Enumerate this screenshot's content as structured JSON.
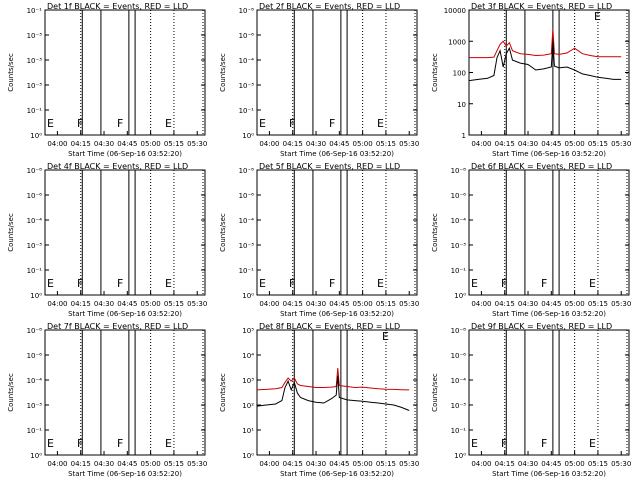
{
  "chart_data": [
    {
      "type": "line",
      "title": "Det 1f BLACK = Events, RED = LLD",
      "xlabel": "",
      "ylabel": "Counts/sec",
      "ytick_labels": [
        "10⁻¹",
        "10⁻³",
        "10⁻³",
        "10⁻³",
        "10⁻¹",
        "10⁰"
      ],
      "xtick_labels": [
        "04:00",
        "04:15",
        "04:30",
        "04:45",
        "05:00",
        "05:15",
        "05:30"
      ],
      "flags": [
        "E",
        "F",
        "F",
        "E"
      ],
      "series": []
    },
    {
      "type": "line",
      "title": "Det 2f BLACK = Events, RED = LLD",
      "xlabel": "",
      "ylabel": "Counts/sec",
      "ytick_labels": [
        "10⁻⁸",
        "10⁻⁶",
        "10⁻⁴",
        "10⁻³",
        "10⁻¹",
        "10⁰"
      ],
      "xtick_labels": [
        "04:00",
        "04:15",
        "04:30",
        "04:45",
        "05:00",
        "05:15",
        "05:30"
      ],
      "flags": [
        "E",
        "F",
        "F",
        "E"
      ],
      "series": []
    },
    {
      "type": "line",
      "title": "Det 3f BLACK = Events, RED = LLD",
      "xlabel": "",
      "ylabel": "Counts/sec",
      "ytick_labels": [
        "10000",
        "1000",
        "100",
        "10",
        "1"
      ],
      "xtick_labels": [
        "04:00",
        "04:15",
        "04:30",
        "04:45",
        "05:00",
        "05:15",
        "05:30"
      ],
      "flags": [
        "E"
      ],
      "series": [
        {
          "color": "#cc0000",
          "x": [
            "03:52",
            "03:58",
            "04:04",
            "04:08",
            "04:10",
            "04:12",
            "04:14",
            "04:16",
            "04:18",
            "04:20",
            "04:25",
            "04:30",
            "04:35",
            "04:40",
            "04:45",
            "04:46",
            "04:47",
            "04:50",
            "04:55",
            "05:00",
            "05:05",
            "05:10",
            "05:15",
            "05:20",
            "05:25",
            "05:30"
          ],
          "y": [
            300,
            300,
            300,
            310,
            500,
            800,
            1000,
            700,
            900,
            500,
            400,
            380,
            350,
            360,
            400,
            2500,
            400,
            380,
            420,
            600,
            400,
            350,
            320,
            320,
            320,
            320
          ]
        },
        {
          "color": "#000000",
          "x": [
            "03:52",
            "03:58",
            "04:04",
            "04:08",
            "04:10",
            "04:12",
            "04:14",
            "04:16",
            "04:18",
            "04:20",
            "04:25",
            "04:30",
            "04:35",
            "04:40",
            "04:45",
            "04:46",
            "04:47",
            "04:50",
            "04:55",
            "05:00",
            "05:05",
            "05:10",
            "05:15",
            "05:20",
            "05:25",
            "05:30"
          ],
          "y": [
            55,
            60,
            65,
            80,
            300,
            500,
            150,
            400,
            600,
            250,
            200,
            180,
            120,
            130,
            150,
            1000,
            160,
            140,
            150,
            120,
            90,
            80,
            70,
            65,
            60,
            60
          ]
        }
      ]
    },
    {
      "type": "line",
      "title": "Det 4f BLACK = Events, RED = LLD",
      "xlabel": "",
      "ylabel": "Counts/sec",
      "ytick_labels": [
        "10⁻⁸",
        "10⁻⁶",
        "10⁻⁴",
        "10⁻³",
        "10⁻¹",
        "10⁰"
      ],
      "xtick_labels": [
        "04:00",
        "04:15",
        "04:30",
        "04:45",
        "05:00",
        "05:15",
        "05:30"
      ],
      "flags": [
        "E",
        "F",
        "F",
        "E"
      ],
      "series": []
    },
    {
      "type": "line",
      "title": "Det 5f BLACK = Events, RED = LLD",
      "xlabel": "",
      "ylabel": "Counts/sec",
      "ytick_labels": [
        "10⁻⁸",
        "10⁻⁶",
        "10⁻⁴",
        "10⁻³",
        "10⁻¹",
        "10⁰"
      ],
      "xtick_labels": [
        "04:00",
        "04:15",
        "04:30",
        "04:45",
        "05:00",
        "05:15",
        "05:30"
      ],
      "flags": [
        "E",
        "F",
        "F",
        "E"
      ],
      "series": []
    },
    {
      "type": "line",
      "title": "Det 6f BLACK = Events, RED = LLD",
      "xlabel": "",
      "ylabel": "Counts/sec",
      "ytick_labels": [
        "10⁻⁸",
        "10⁻⁶",
        "10⁻⁴",
        "10⁻³",
        "10⁻¹",
        "10⁰"
      ],
      "xtick_labels": [
        "04:00",
        "04:15",
        "04:30",
        "04:45",
        "05:00",
        "05:15",
        "05:30"
      ],
      "flags": [
        "E",
        "F",
        "F",
        "E"
      ],
      "series": []
    },
    {
      "type": "line",
      "title": "Det 7f BLACK = Events, RED = LLD",
      "xlabel": "",
      "ylabel": "Counts/sec",
      "ytick_labels": [
        "10⁻⁸",
        "10⁻⁶",
        "10⁻⁴",
        "10⁻³",
        "10⁻¹",
        "10⁰"
      ],
      "xtick_labels": [
        "04:00",
        "04:15",
        "04:30",
        "04:45",
        "05:00",
        "05:15",
        "05:30"
      ],
      "flags": [
        "E",
        "F",
        "F",
        "E"
      ],
      "series": []
    },
    {
      "type": "line",
      "title": "Det 8f BLACK = Events, RED = LLD",
      "xlabel": "",
      "ylabel": "Counts/sec",
      "ytick_labels": [
        "10⁵",
        "10⁴",
        "10³",
        "10²",
        "10¹",
        "10⁰"
      ],
      "xtick_labels": [
        "04:00",
        "04:15",
        "04:30",
        "04:45",
        "05:00",
        "05:15",
        "05:30"
      ],
      "flags": [
        "E"
      ],
      "series": [
        {
          "color": "#cc0000",
          "x": [
            "03:52",
            "03:58",
            "04:04",
            "04:08",
            "04:10",
            "04:12",
            "04:14",
            "04:16",
            "04:18",
            "04:20",
            "04:25",
            "04:30",
            "04:35",
            "04:40",
            "04:43",
            "04:44",
            "04:45",
            "04:50",
            "04:55",
            "05:00",
            "05:05",
            "05:10",
            "05:15",
            "05:20",
            "05:25",
            "05:30"
          ],
          "y": [
            400,
            420,
            450,
            500,
            800,
            1200,
            900,
            1200,
            700,
            600,
            550,
            500,
            500,
            520,
            550,
            3000,
            600,
            550,
            500,
            520,
            480,
            450,
            430,
            420,
            410,
            400
          ]
        },
        {
          "color": "#000000",
          "x": [
            "03:52",
            "03:58",
            "04:04",
            "04:08",
            "04:10",
            "04:12",
            "04:14",
            "04:16",
            "04:18",
            "04:20",
            "04:25",
            "04:30",
            "04:35",
            "04:40",
            "04:43",
            "04:44",
            "04:45",
            "04:50",
            "04:55",
            "05:00",
            "05:05",
            "05:10",
            "05:15",
            "05:20",
            "05:25",
            "05:30"
          ],
          "y": [
            90,
            100,
            110,
            150,
            500,
            900,
            400,
            800,
            300,
            200,
            150,
            130,
            120,
            180,
            250,
            1500,
            200,
            160,
            150,
            140,
            130,
            120,
            110,
            100,
            80,
            60
          ]
        }
      ]
    },
    {
      "type": "line",
      "title": "Det 9f BLACK = Events, RED = LLD",
      "xlabel": "",
      "ylabel": "Counts/sec",
      "ytick_labels": [
        "10⁻⁸",
        "10⁻⁶",
        "10⁻⁴",
        "10⁻³",
        "10⁻¹",
        "10⁰"
      ],
      "xtick_labels": [
        "04:00",
        "04:15",
        "04:30",
        "04:45",
        "05:00",
        "05:15",
        "05:30"
      ],
      "flags": [
        "E",
        "F",
        "F",
        "E"
      ],
      "series": []
    }
  ],
  "start_time_label": "Start Time (06-Sep-16 03:52:20)",
  "row_start_time_labels": [
    "Start Time (06-Sep-16 03:52:20)",
    "Start Time (06-Sep-16 03:52:20)",
    "Start Time (06-Sep-16 03:52:20)"
  ],
  "top_right_flag": "E"
}
